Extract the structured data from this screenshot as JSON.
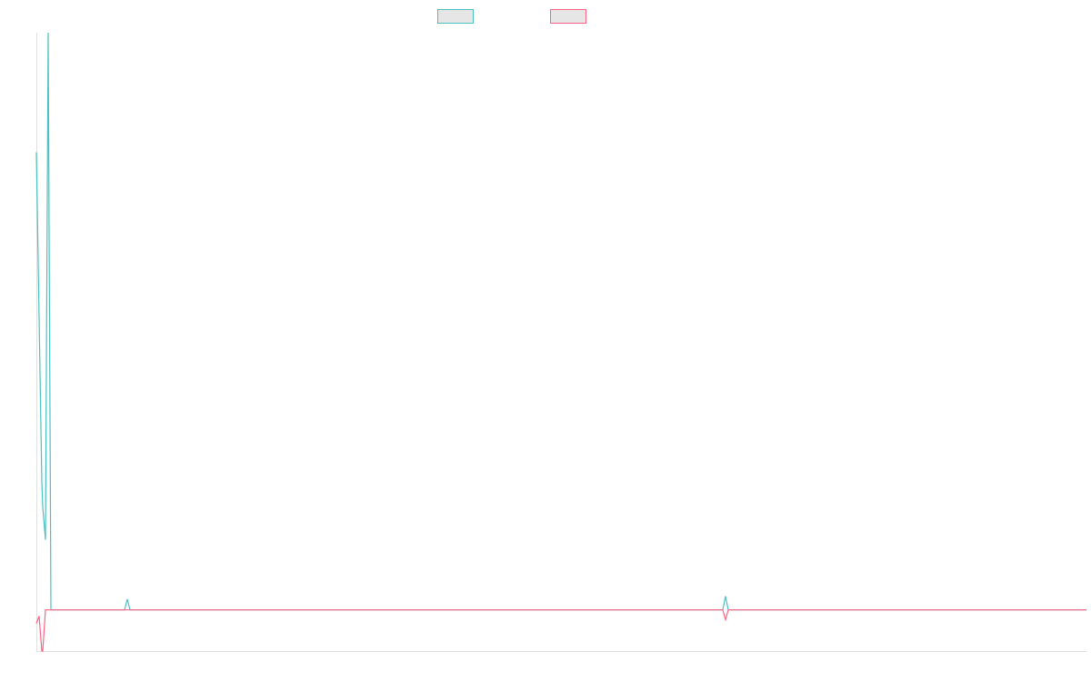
{
  "chart_data": {
    "type": "line",
    "x": [
      0,
      3,
      6,
      7,
      10,
      13,
      16,
      97,
      100,
      103,
      755,
      758,
      761,
      890,
      1155
    ],
    "series": [
      {
        "color": "#4bc0c0",
        "values": [
          111,
          71,
          31,
          25,
          17,
          140,
          0,
          0,
          2.6,
          0,
          0,
          3.3,
          0,
          0,
          0
        ]
      },
      {
        "color": "#ff6384",
        "values": [
          -3.3,
          -1.5,
          -10,
          -10,
          0,
          0,
          0,
          0,
          0,
          0,
          0,
          -2.4,
          0,
          0,
          0
        ]
      }
    ],
    "xlim": [
      0,
      1155
    ],
    "ylim": [
      -10,
      140
    ],
    "legend": "top"
  }
}
